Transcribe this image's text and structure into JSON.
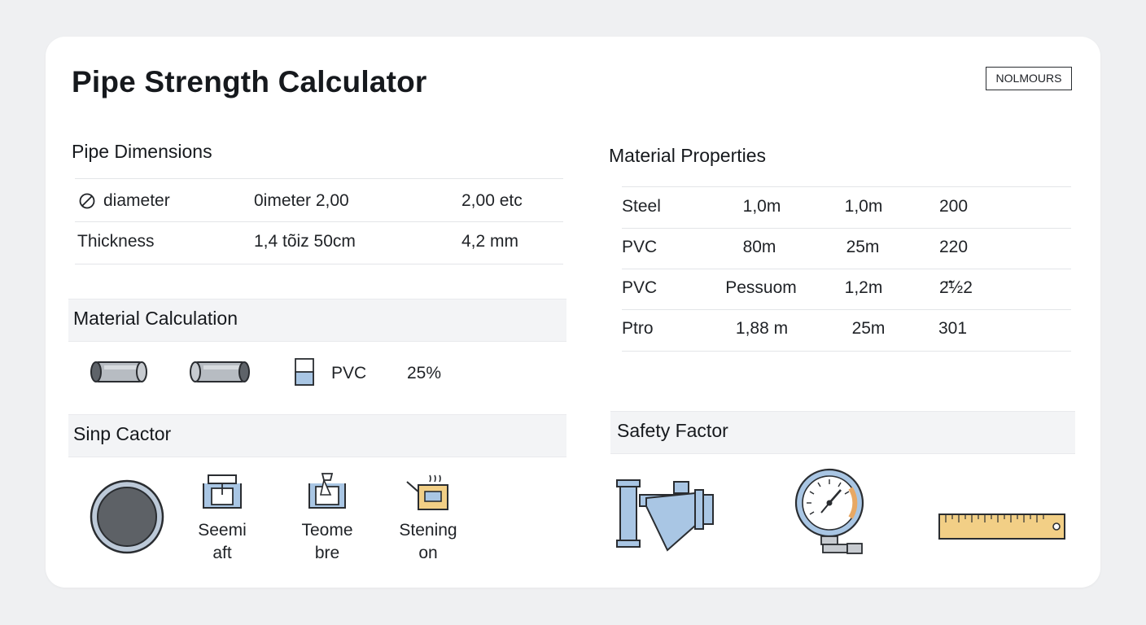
{
  "title": "Pipe Strength Calculator",
  "badge": "NOLMOURS",
  "pipe_dimensions": {
    "title": "Pipe Dimensions",
    "rows": [
      {
        "label": "diameter",
        "value1": "0imeter  2,00",
        "value2": "2,00 etc"
      },
      {
        "label": "Thickness",
        "value1": "1,4 tõiz 50cm",
        "value2": "4,2 mm"
      }
    ]
  },
  "material_calculation": {
    "title": "Material Calculation",
    "material": "PVC",
    "percent": "25%"
  },
  "sinp_cactor": {
    "title": "Sinp Cactor",
    "items": [
      {
        "line1": "Seemi",
        "line2": "aft"
      },
      {
        "line1": "Teome",
        "line2": "bre"
      },
      {
        "line1": "Stening",
        "line2": "on"
      }
    ]
  },
  "material_properties": {
    "title": "Material Properties",
    "rows": [
      [
        "Steel",
        "1,0m",
        "1,0m",
        "200"
      ],
      [
        "PVC",
        "80m",
        "25m",
        "220"
      ],
      [
        "PVC",
        "Pessuom",
        "1,2m",
        "2̃̈½2"
      ],
      [
        "Ptro",
        "1,88 m",
        "25m",
        "301"
      ]
    ]
  },
  "safety_factor": {
    "title": "Safety Factor"
  },
  "icons": {
    "diameter": "diameter-icon",
    "pipe": "pipe-icon",
    "container": "container-icon",
    "valve": "valve-icon",
    "gauge": "pressure-gauge-icon",
    "ruler": "ruler-icon"
  },
  "colors": {
    "card": "#ffffff",
    "background": "#eff0f2",
    "blue_fill": "#a9c6e4",
    "steel_gray": "#8a8f96",
    "ruler_fill": "#f2cf86",
    "gauge_accent": "#e8a864"
  }
}
